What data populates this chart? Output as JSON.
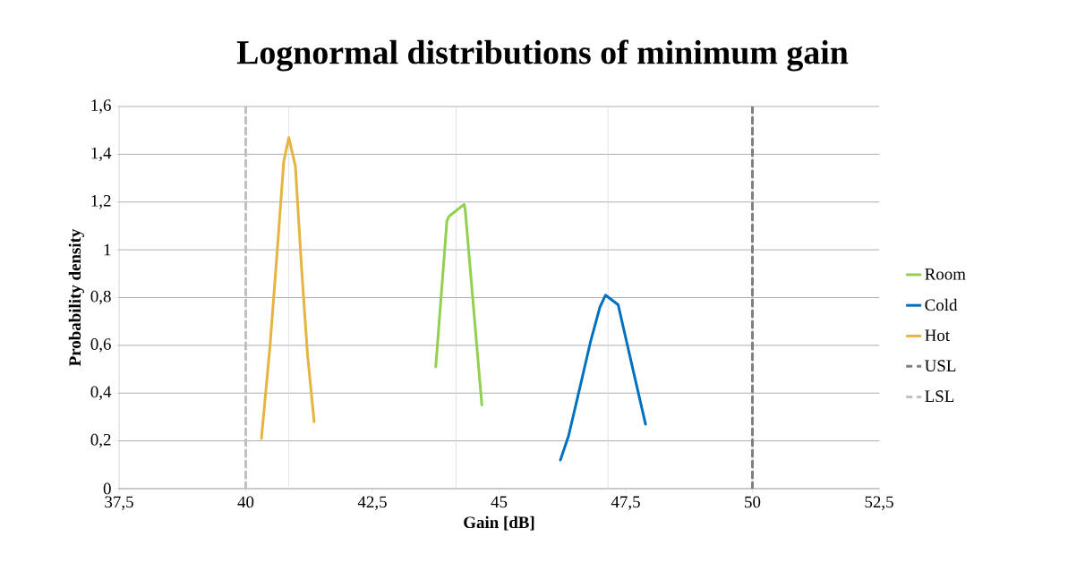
{
  "chart_data": {
    "type": "line",
    "title": "Lognormal distributions of minimum gain",
    "xlabel": "Gain [dB]",
    "ylabel": "Probability density",
    "xlim": [
      37.5,
      52.5
    ],
    "xticks": [
      {
        "value": 37.5,
        "label": "37,5"
      },
      40,
      {
        "value": 42.5,
        "label": "42,5"
      },
      45,
      {
        "value": 47.5,
        "label": "47,5"
      },
      50,
      {
        "value": 52.5,
        "label": "52,5"
      }
    ],
    "ylim": [
      0,
      1.6
    ],
    "yticks": [
      0,
      {
        "value": 0.2,
        "label": "0,2"
      },
      {
        "value": 0.4,
        "label": "0,4"
      },
      {
        "value": 0.6,
        "label": "0,6"
      },
      {
        "value": 0.8,
        "label": "0,8"
      },
      1,
      {
        "value": 1.2,
        "label": "1,2"
      },
      {
        "value": 1.4,
        "label": "1,4"
      },
      {
        "value": 1.6,
        "label": "1,6"
      }
    ],
    "grid": "y",
    "legend": "right",
    "marker": "none",
    "ref_lines": [
      {
        "axis": "x",
        "value": 40.85,
        "color": "#d9d9d9"
      },
      {
        "axis": "x",
        "value": 44.15,
        "color": "#d9d9d9"
      },
      {
        "axis": "x",
        "value": 47.15,
        "color": "#d9d9d9"
      }
    ],
    "series": [
      {
        "name": "Room",
        "color": "#92d050",
        "line_style": "solid",
        "x": [
          43.75,
          43.97,
          44.01,
          44.31,
          44.33,
          44.66
        ],
        "values": [
          0.51,
          1.12,
          1.14,
          1.19,
          1.17,
          0.35
        ]
      },
      {
        "name": "Cold",
        "color": "#0070c0",
        "line_style": "solid",
        "x": [
          46.21,
          46.37,
          46.58,
          46.81,
          46.99,
          47.1,
          47.35,
          47.63,
          47.89
        ],
        "values": [
          0.12,
          0.22,
          0.41,
          0.62,
          0.76,
          0.81,
          0.77,
          0.51,
          0.27
        ]
      },
      {
        "name": "Hot",
        "color": "#e6b440",
        "line_style": "solid",
        "x": [
          40.31,
          40.48,
          40.63,
          40.75,
          40.85,
          40.98,
          41.1,
          41.22,
          41.35
        ],
        "values": [
          0.21,
          0.6,
          1.02,
          1.37,
          1.47,
          1.35,
          0.93,
          0.56,
          0.28
        ]
      },
      {
        "name": "USL",
        "color": "#808080",
        "line_style": "dashed",
        "x": [
          50,
          50
        ],
        "values": [
          0,
          1.6
        ]
      },
      {
        "name": "LSL",
        "color": "#c0c0c0",
        "line_style": "dashed",
        "x": [
          40,
          40
        ],
        "values": [
          0,
          1.6
        ]
      }
    ]
  }
}
